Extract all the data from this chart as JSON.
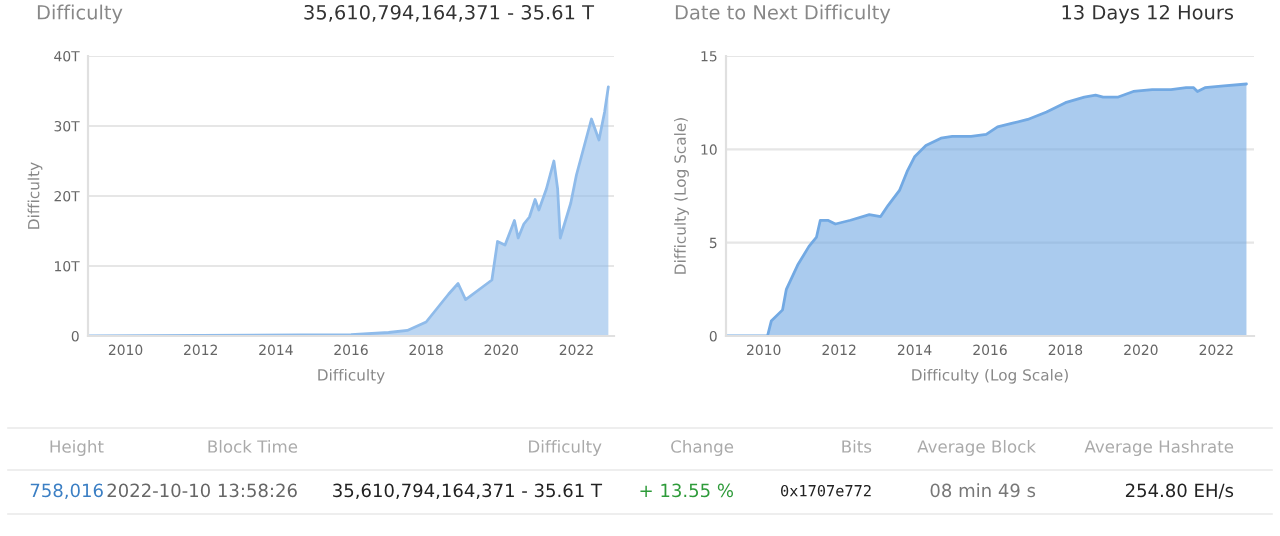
{
  "chart_data": [
    {
      "type": "area",
      "title": "Difficulty",
      "annotations": [
        "35,610,794,164,371 - 35.61 T"
      ],
      "xlabel": "Difficulty",
      "ylabel": "Difficulty",
      "series": [
        {
          "color": "#8fbbea",
          "x": [
            2009,
            2016,
            2017,
            2017.5,
            2018,
            2018.3,
            2018.6,
            2018.85,
            2019.05,
            2019.5,
            2019.75,
            2019.9,
            2020.1,
            2020.35,
            2020.45,
            2020.6,
            2020.75,
            2020.9,
            2021.0,
            2021.2,
            2021.3,
            2021.4,
            2021.5,
            2021.57,
            2021.85,
            2022.0,
            2022.2,
            2022.4,
            2022.6,
            2022.75,
            2022.85
          ],
          "values": [
            0,
            0.2,
            0.5,
            0.8,
            2,
            4,
            6,
            7.5,
            5.2,
            7,
            8,
            13.5,
            13,
            16.5,
            14,
            16,
            17,
            19.5,
            18,
            21,
            23,
            25,
            21,
            14,
            19,
            23,
            27,
            31,
            28,
            32,
            35.6
          ]
        }
      ],
      "xlim": [
        2009,
        2023
      ],
      "xticks": [
        2010,
        2012,
        2014,
        2016,
        2018,
        2020,
        2022
      ],
      "ylim": [
        0,
        40
      ],
      "yticks": [
        {
          "value": 0,
          "label": "0"
        },
        {
          "value": 10,
          "label": "10T"
        },
        {
          "value": 20,
          "label": "20T"
        },
        {
          "value": 30,
          "label": "30T"
        },
        {
          "value": 40,
          "label": "40T"
        }
      ],
      "grid": "y"
    },
    {
      "type": "area",
      "title": "Date to Next Difficulty",
      "annotations": [
        "13 Days 12 Hours"
      ],
      "xlabel": "Difficulty (Log Scale)",
      "ylabel": "Difficulty (Log Scale)",
      "series": [
        {
          "color": "#72a9e3",
          "x": [
            2009,
            2010.1,
            2010.2,
            2010.5,
            2010.6,
            2010.9,
            2011.2,
            2011.4,
            2011.5,
            2011.7,
            2011.9,
            2012.3,
            2012.8,
            2013.1,
            2013.3,
            2013.6,
            2013.8,
            2014.0,
            2014.3,
            2014.7,
            2015.0,
            2015.5,
            2015.9,
            2016.2,
            2016.6,
            2017.0,
            2017.5,
            2018.0,
            2018.5,
            2018.8,
            2019.0,
            2019.4,
            2019.8,
            2020.3,
            2020.8,
            2021.2,
            2021.4,
            2021.5,
            2021.7,
            2022.2,
            2022.8
          ],
          "values": [
            0,
            0,
            0.8,
            1.4,
            2.5,
            3.8,
            4.8,
            5.3,
            6.2,
            6.2,
            6.0,
            6.2,
            6.5,
            6.4,
            7,
            7.8,
            8.8,
            9.6,
            10.2,
            10.6,
            10.7,
            10.7,
            10.8,
            11.2,
            11.4,
            11.6,
            12.0,
            12.5,
            12.8,
            12.9,
            12.8,
            12.8,
            13.1,
            13.2,
            13.2,
            13.3,
            13.3,
            13.1,
            13.3,
            13.4,
            13.5
          ]
        }
      ],
      "xlim": [
        2009,
        2023
      ],
      "xticks": [
        2010,
        2012,
        2014,
        2016,
        2018,
        2020,
        2022
      ],
      "ylim": [
        0,
        15
      ],
      "yticks": [
        0,
        5,
        10,
        15
      ],
      "grid": "y"
    },
    {
      "type": "other",
      "categories": [
        "Height",
        "Block Time",
        "Difficulty",
        "Change",
        "Bits",
        "Average Block",
        "Average Hashrate"
      ],
      "annotations": [
        "758,016",
        "2022-10-10 13:58:26",
        "35,610,794,164,371 - 35.61 T",
        "+ 13.55 %",
        "0x1707e772",
        "08 min 49 s",
        "254.80 EH/s"
      ],
      "colors": [
        "#3b7fc4",
        "#666666",
        "#222222",
        "#2e9b3a",
        "#222222",
        "#777777",
        "#222222"
      ]
    }
  ]
}
